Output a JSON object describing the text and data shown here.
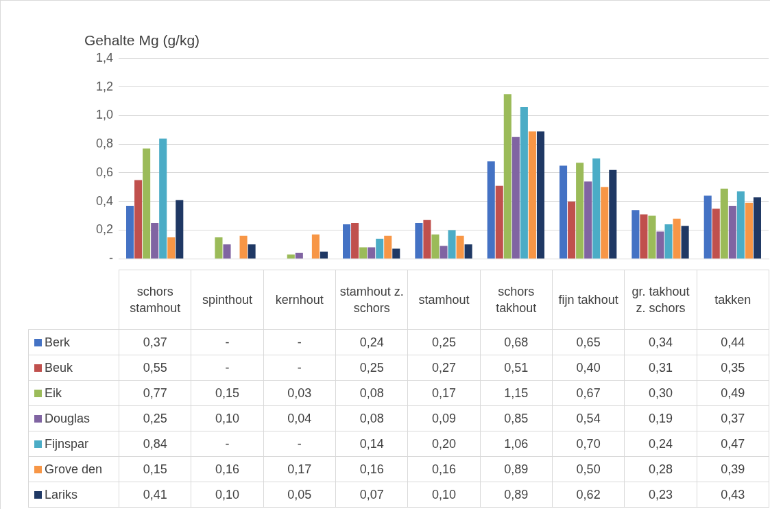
{
  "chart_data": {
    "type": "bar",
    "ylabel": "Gehalte Mg (g/kg)",
    "categories": [
      "schors stamhout",
      "spinthout",
      "kernhout",
      "stamhout z. schors",
      "stamhout",
      "schors takhout",
      "fijn takhout",
      "gr. takhout z. schors",
      "takken"
    ],
    "series": [
      {
        "name": "Berk",
        "color": "#4472c4",
        "values": [
          0.37,
          null,
          null,
          0.24,
          0.25,
          0.68,
          0.65,
          0.34,
          0.44
        ],
        "value_labels": [
          "0,37",
          "-",
          "-",
          "0,24",
          "0,25",
          "0,68",
          "0,65",
          "0,34",
          "0,44"
        ]
      },
      {
        "name": "Beuk",
        "color": "#c0504d",
        "values": [
          0.55,
          null,
          null,
          0.25,
          0.27,
          0.51,
          0.4,
          0.31,
          0.35
        ],
        "value_labels": [
          "0,55",
          "-",
          "-",
          "0,25",
          "0,27",
          "0,51",
          "0,40",
          "0,31",
          "0,35"
        ]
      },
      {
        "name": "Eik",
        "color": "#9bbb59",
        "values": [
          0.77,
          0.15,
          0.03,
          0.08,
          0.17,
          1.15,
          0.67,
          0.3,
          0.49
        ],
        "value_labels": [
          "0,77",
          "0,15",
          "0,03",
          "0,08",
          "0,17",
          "1,15",
          "0,67",
          "0,30",
          "0,49"
        ]
      },
      {
        "name": "Douglas",
        "color": "#8064a2",
        "values": [
          0.25,
          0.1,
          0.04,
          0.08,
          0.09,
          0.85,
          0.54,
          0.19,
          0.37
        ],
        "value_labels": [
          "0,25",
          "0,10",
          "0,04",
          "0,08",
          "0,09",
          "0,85",
          "0,54",
          "0,19",
          "0,37"
        ]
      },
      {
        "name": "Fijnspar",
        "color": "#4bacc6",
        "values": [
          0.84,
          null,
          null,
          0.14,
          0.2,
          1.06,
          0.7,
          0.24,
          0.47
        ],
        "value_labels": [
          "0,84",
          "-",
          "-",
          "0,14",
          "0,20",
          "1,06",
          "0,70",
          "0,24",
          "0,47"
        ]
      },
      {
        "name": "Grove den",
        "color": "#f79646",
        "values": [
          0.15,
          0.16,
          0.17,
          0.16,
          0.16,
          0.89,
          0.5,
          0.28,
          0.39
        ],
        "value_labels": [
          "0,15",
          "0,16",
          "0,17",
          "0,16",
          "0,16",
          "0,89",
          "0,50",
          "0,28",
          "0,39"
        ]
      },
      {
        "name": "Lariks",
        "color": "#1f3864",
        "values": [
          0.41,
          0.1,
          0.05,
          0.07,
          0.1,
          0.89,
          0.62,
          0.23,
          0.43
        ],
        "value_labels": [
          "0,41",
          "0,10",
          "0,05",
          "0,07",
          "0,10",
          "0,89",
          "0,62",
          "0,23",
          "0,43"
        ]
      }
    ],
    "ylim": [
      0,
      1.4
    ],
    "yticks": [
      {
        "value": 0,
        "label": "-"
      },
      {
        "value": 0.2,
        "label": "0,2"
      },
      {
        "value": 0.4,
        "label": "0,4"
      },
      {
        "value": 0.6,
        "label": "0,6"
      },
      {
        "value": 0.8,
        "label": "0,8"
      },
      {
        "value": 1.0,
        "label": "1,0"
      },
      {
        "value": 1.2,
        "label": "1,2"
      },
      {
        "value": 1.4,
        "label": "1,4"
      }
    ],
    "grid": "y",
    "legend": "bottom left"
  }
}
